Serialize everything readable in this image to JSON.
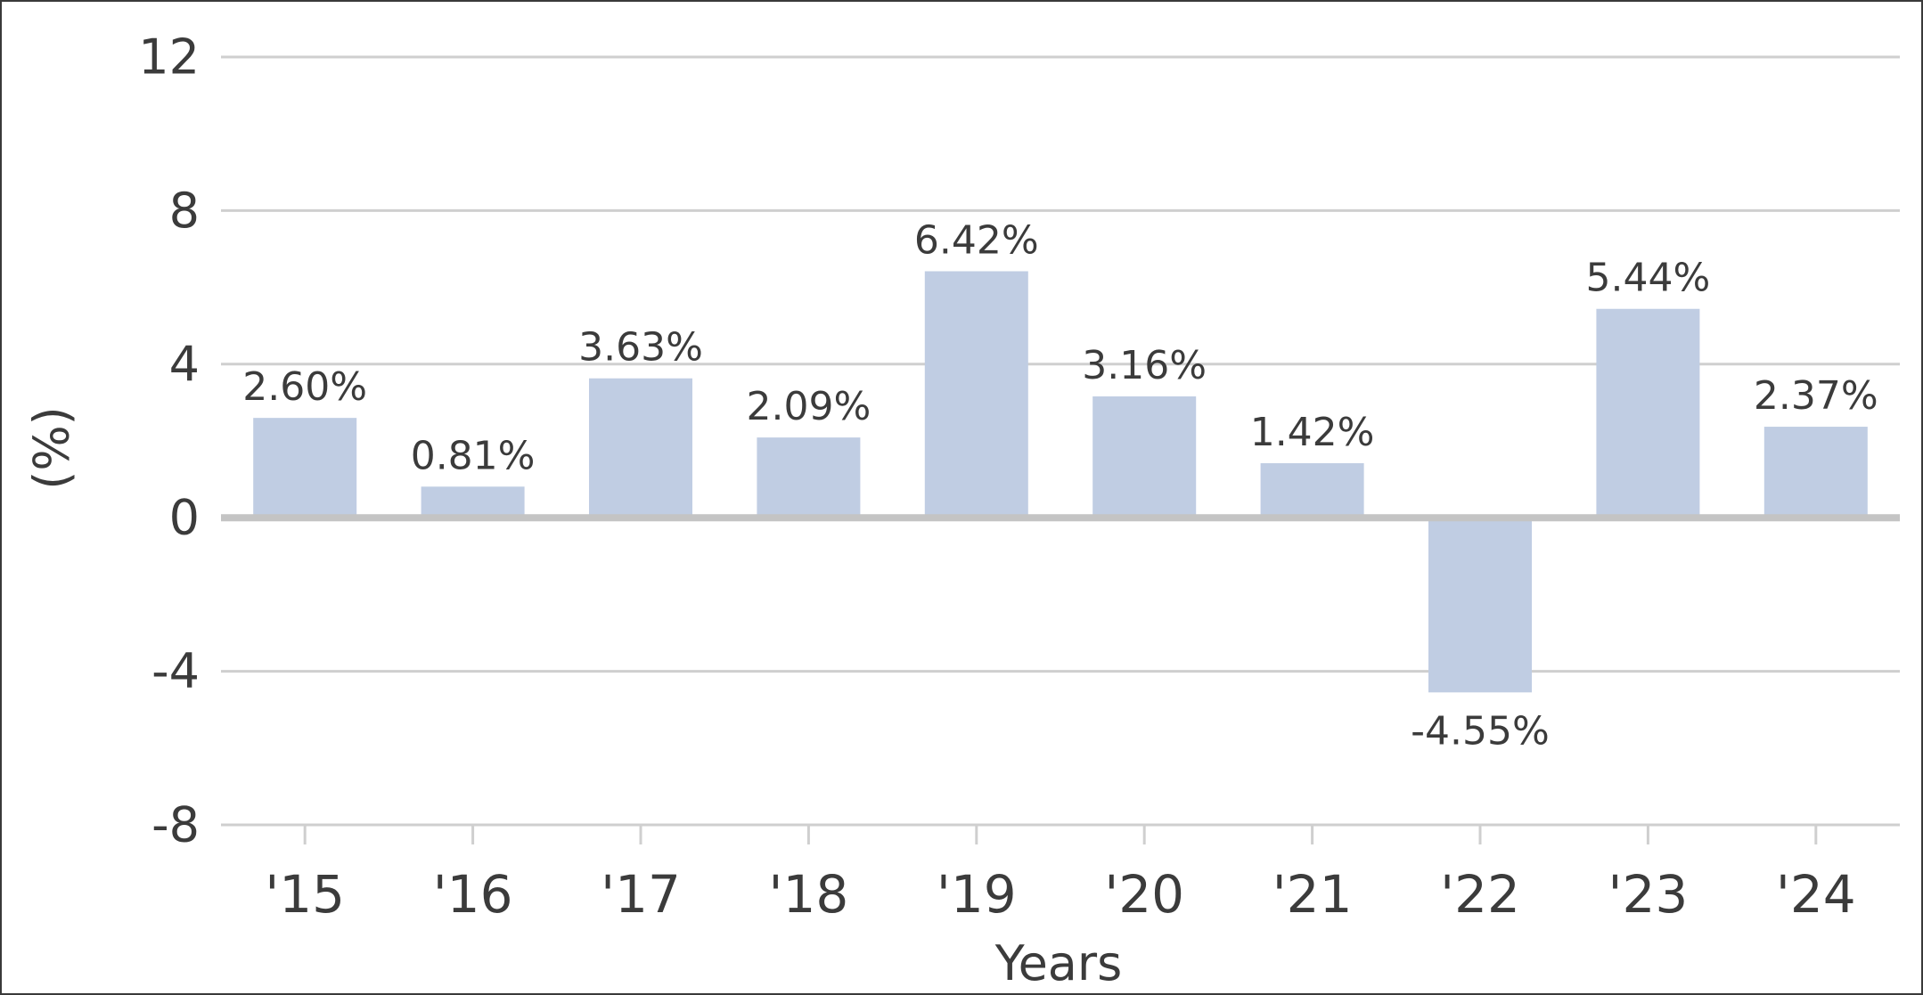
{
  "chart_data": {
    "type": "bar",
    "categories": [
      "'15",
      "'16",
      "'17",
      "'18",
      "'19",
      "'20",
      "'21",
      "'22",
      "'23",
      "'24"
    ],
    "values": [
      2.6,
      0.81,
      3.63,
      2.09,
      6.42,
      3.16,
      1.42,
      -4.55,
      5.44,
      2.37
    ],
    "data_labels": [
      "2.60%",
      "0.81%",
      "3.63%",
      "2.09%",
      "6.42%",
      "3.16%",
      "1.42%",
      "-4.55%",
      "5.44%",
      "2.37%"
    ],
    "y_ticks": [
      12,
      8,
      4,
      0,
      -4,
      -8
    ],
    "ylim": [
      -8,
      12
    ],
    "xlabel": "Years",
    "ylabel": "(%)",
    "grid": true,
    "legend": "none",
    "colors": {
      "bar": "#c0cde3",
      "grid": "#cfcfcf",
      "zero_line": "#c4c4c4",
      "text": "#3b3b3b",
      "frame": "#3a3a3a"
    }
  }
}
